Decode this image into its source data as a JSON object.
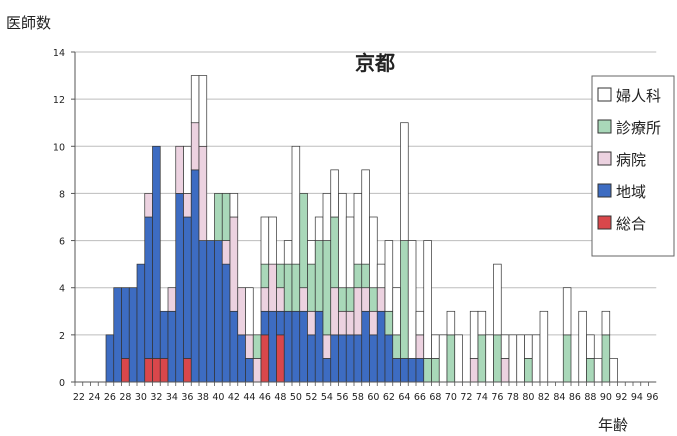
{
  "chart_data": {
    "type": "bar",
    "stacked": true,
    "title": "京都",
    "ylabel": "医師数",
    "xlabel": "年齢",
    "ylim": [
      0,
      14
    ],
    "yticks": [
      0,
      2,
      4,
      6,
      8,
      10,
      12,
      14
    ],
    "xtick_labels": [
      "22",
      "24",
      "26",
      "28",
      "30",
      "32",
      "34",
      "36",
      "38",
      "40",
      "42",
      "44",
      "46",
      "48",
      "50",
      "52",
      "54",
      "56",
      "58",
      "60",
      "62",
      "64",
      "66",
      "68",
      "70",
      "72",
      "74",
      "76",
      "78",
      "80",
      "82",
      "84",
      "86",
      "88",
      "90",
      "92",
      "94",
      "96"
    ],
    "categories": [
      22,
      23,
      24,
      25,
      26,
      27,
      28,
      29,
      30,
      31,
      32,
      33,
      34,
      35,
      36,
      37,
      38,
      39,
      40,
      41,
      42,
      43,
      44,
      45,
      46,
      47,
      48,
      49,
      50,
      51,
      52,
      53,
      54,
      55,
      56,
      57,
      58,
      59,
      60,
      61,
      62,
      63,
      64,
      65,
      66,
      67,
      68,
      69,
      70,
      71,
      72,
      73,
      74,
      75,
      76,
      77,
      78,
      79,
      80,
      81,
      82,
      83,
      84,
      85,
      86,
      87,
      88,
      89,
      90,
      91,
      92,
      93,
      94,
      95,
      96
    ],
    "grid": true,
    "legend_position": "right",
    "series": [
      {
        "name": "総合",
        "color": "#d9474b",
        "values": [
          0,
          0,
          0,
          0,
          0,
          0,
          1,
          0,
          0,
          1,
          1,
          1,
          0,
          0,
          1,
          0,
          0,
          0,
          0,
          0,
          0,
          0,
          0,
          0,
          2,
          0,
          2,
          0,
          0,
          0,
          0,
          0,
          0,
          0,
          0,
          0,
          0,
          0,
          0,
          0,
          0,
          0,
          0,
          0,
          0,
          0,
          0,
          0,
          0,
          0,
          0,
          0,
          0,
          0,
          0,
          0,
          0,
          0,
          0,
          0,
          0,
          0,
          0,
          0,
          0,
          0,
          0,
          0,
          0,
          0,
          0,
          0,
          0,
          0,
          0
        ]
      },
      {
        "name": "地域",
        "color": "#3d6cc2",
        "values": [
          0,
          0,
          0,
          0,
          2,
          4,
          3,
          4,
          5,
          6,
          9,
          2,
          3,
          8,
          6,
          9,
          6,
          6,
          6,
          5,
          3,
          2,
          1,
          0,
          1,
          3,
          1,
          3,
          3,
          3,
          2,
          3,
          1,
          2,
          2,
          2,
          2,
          3,
          2,
          3,
          2,
          1,
          1,
          1,
          1,
          0,
          0,
          0,
          0,
          0,
          0,
          0,
          0,
          0,
          0,
          0,
          0,
          0,
          0,
          0,
          0,
          0,
          0,
          0,
          0,
          0,
          0,
          0,
          0,
          0,
          0,
          0,
          0,
          0,
          0
        ]
      },
      {
        "name": "病院",
        "color": "#ecd2e0",
        "values": [
          0,
          0,
          0,
          0,
          0,
          0,
          0,
          0,
          0,
          1,
          0,
          0,
          1,
          2,
          1,
          2,
          4,
          0,
          0,
          1,
          4,
          2,
          1,
          1,
          1,
          2,
          1,
          0,
          0,
          1,
          1,
          0,
          1,
          2,
          1,
          1,
          2,
          1,
          1,
          1,
          0,
          0,
          0,
          0,
          1,
          0,
          0,
          0,
          0,
          0,
          0,
          1,
          0,
          0,
          0,
          1,
          0,
          0,
          0,
          0,
          0,
          0,
          0,
          0,
          0,
          0,
          0,
          0,
          0,
          0,
          0,
          0,
          0,
          0,
          0
        ]
      },
      {
        "name": "診療所",
        "color": "#a9d8b9",
        "values": [
          0,
          0,
          0,
          0,
          0,
          0,
          0,
          0,
          0,
          0,
          0,
          0,
          0,
          0,
          0,
          0,
          0,
          0,
          2,
          2,
          0,
          0,
          0,
          1,
          1,
          0,
          1,
          2,
          2,
          4,
          2,
          3,
          4,
          3,
          1,
          1,
          1,
          1,
          1,
          0,
          1,
          1,
          5,
          0,
          0,
          1,
          1,
          0,
          2,
          0,
          0,
          0,
          2,
          0,
          2,
          0,
          0,
          0,
          1,
          0,
          0,
          0,
          0,
          2,
          0,
          0,
          1,
          0,
          2,
          0,
          0,
          0,
          0,
          0,
          0
        ]
      },
      {
        "name": "婦人科",
        "color": "#ffffff",
        "values": [
          0,
          0,
          0,
          0,
          0,
          0,
          0,
          0,
          0,
          0,
          0,
          0,
          0,
          0,
          2,
          2,
          3,
          0,
          0,
          0,
          1,
          0,
          2,
          0,
          2,
          2,
          0,
          1,
          5,
          0,
          1,
          1,
          2,
          2,
          4,
          3,
          3,
          4,
          3,
          1,
          3,
          2,
          5,
          5,
          1,
          5,
          1,
          2,
          1,
          2,
          0,
          2,
          1,
          2,
          3,
          1,
          2,
          2,
          1,
          2,
          3,
          0,
          0,
          2,
          0,
          3,
          1,
          1,
          1,
          1,
          0,
          0,
          0,
          0,
          0
        ]
      }
    ]
  }
}
